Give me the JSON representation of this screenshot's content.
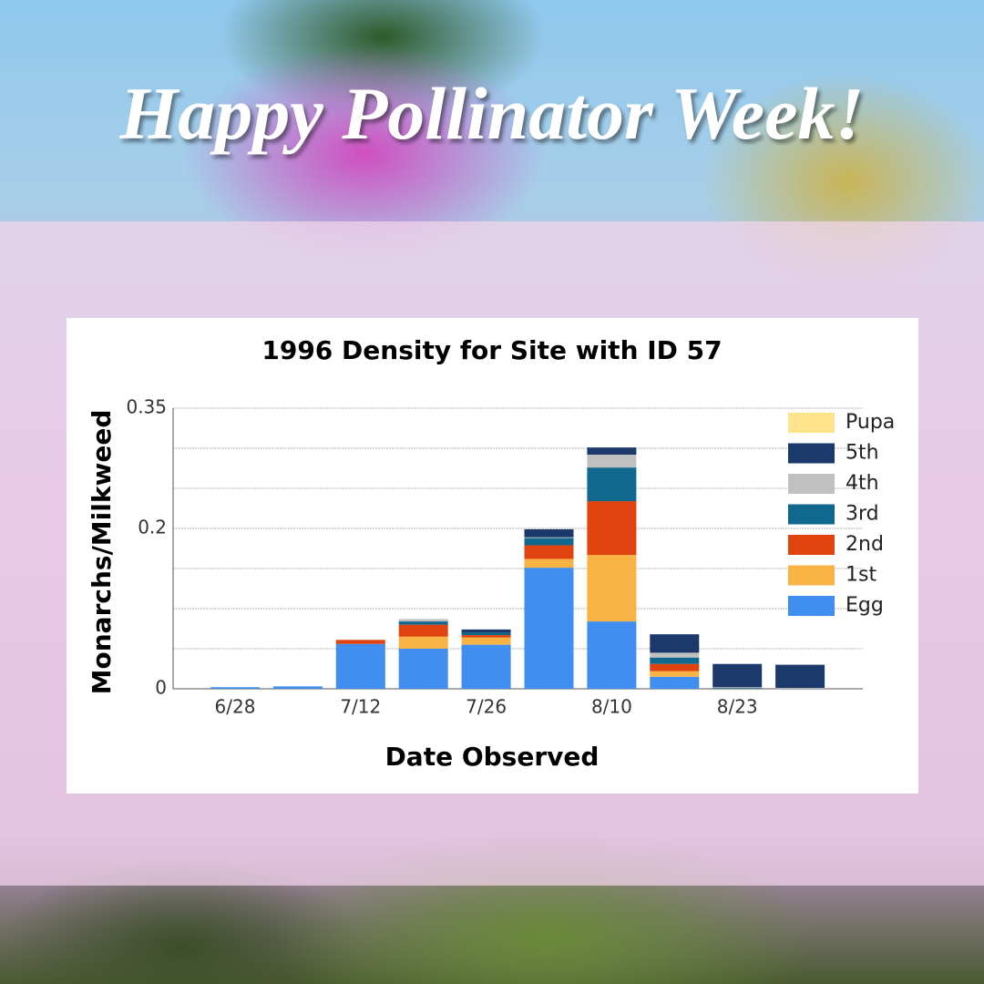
{
  "header": {
    "title": "Happy Pollinator Week!"
  },
  "chart_data": {
    "type": "stacked_bar",
    "title": "1996 Density for Site with ID 57",
    "x_label": "Date Observed",
    "y_label": "Monarchs/Milkweed",
    "categories": [
      "6/28",
      null,
      "7/12",
      null,
      "7/26",
      null,
      "8/10",
      null,
      "8/23",
      null
    ],
    "series": [
      {
        "name": "Egg",
        "color": "#3f8ef0",
        "values": [
          0.002,
          0.003,
          0.056,
          0.05,
          0.055,
          0.151,
          0.084,
          0.015,
          0,
          0
        ]
      },
      {
        "name": "1st",
        "color": "#f9b244",
        "values": [
          0,
          0,
          0,
          0.015,
          0.009,
          0.011,
          0.083,
          0.007,
          0,
          0
        ]
      },
      {
        "name": "2nd",
        "color": "#e0430d",
        "values": [
          0,
          0,
          0.005,
          0.015,
          0.003,
          0.017,
          0.067,
          0.009,
          0,
          0
        ]
      },
      {
        "name": "3rd",
        "color": "#10688f",
        "values": [
          0,
          0,
          0,
          0.004,
          0.003,
          0.009,
          0.042,
          0.008,
          0.001,
          0
        ]
      },
      {
        "name": "4th",
        "color": "#c0c0c0",
        "values": [
          0,
          0,
          0,
          0.003,
          0,
          0.001,
          0.016,
          0.006,
          0.001,
          0.001
        ]
      },
      {
        "name": "5th",
        "color": "#1b3a6b",
        "values": [
          0,
          0,
          0,
          0,
          0.004,
          0.01,
          0.009,
          0.023,
          0.029,
          0.029
        ]
      },
      {
        "name": "Pupa",
        "color": "#fde38b",
        "values": [
          0,
          0,
          0,
          0,
          0,
          0,
          0,
          0,
          0,
          0
        ]
      }
    ],
    "ylim": [
      0,
      0.35
    ],
    "yticks": [
      0,
      0.2,
      0.35
    ],
    "grid_lines": [
      0.05,
      0.1,
      0.15,
      0.25,
      0.3
    ],
    "grid": true,
    "legend": "right"
  }
}
